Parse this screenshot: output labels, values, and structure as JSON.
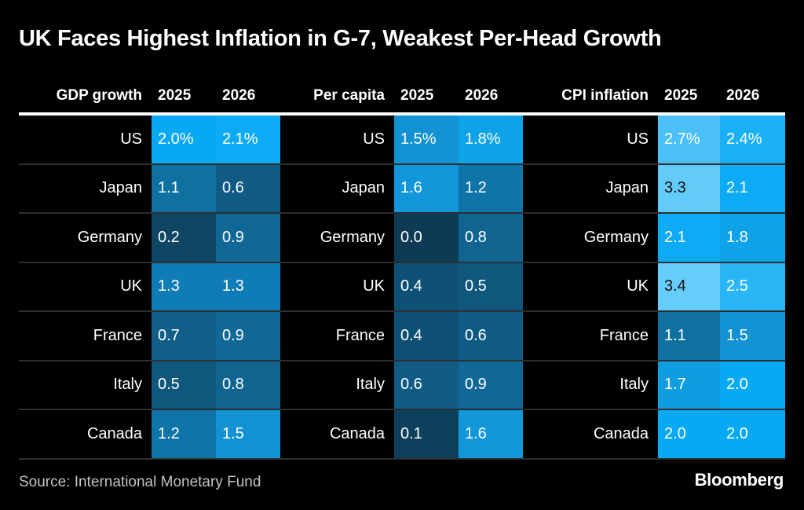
{
  "title": "UK Faces Highest Inflation in G-7, Weakest Per-Head Growth",
  "footer": {
    "source": "Source: International Monetary Fund",
    "brand": "Bloomberg"
  },
  "colors": {
    "background": "#000000",
    "title_text": "#FFFFFF",
    "header_text": "#FFFFFF",
    "label_text": "#FFFFFF",
    "value_text_light": "#FFFFFF",
    "value_text_dark": "#111111",
    "header_rule": "#FFFFFF",
    "row_divider": "#2E2E2E",
    "source_text": "#C4C4C4"
  },
  "heat_scale": {
    "dark_text_threshold": 3.0,
    "stops": [
      [
        0.0,
        "#0D3A54"
      ],
      [
        0.5,
        "#0F577D"
      ],
      [
        1.0,
        "#0F6C9C"
      ],
      [
        1.2,
        "#0F74A8"
      ],
      [
        1.3,
        "#107CB6"
      ],
      [
        1.5,
        "#1292D3"
      ],
      [
        1.8,
        "#0EA2E8"
      ],
      [
        2.0,
        "#08A9F4"
      ],
      [
        2.4,
        "#1AB0F6"
      ],
      [
        2.7,
        "#4AC0F7"
      ],
      [
        3.0,
        "#58C6F8"
      ],
      [
        3.4,
        "#66CCF9"
      ]
    ]
  },
  "chart_data": {
    "type": "heatmap",
    "title": "UK Faces Highest Inflation in G-7, Weakest Per-Head Growth",
    "unit": "%",
    "first_row_percent_suffix": true,
    "countries": [
      "US",
      "Japan",
      "Germany",
      "UK",
      "France",
      "Italy",
      "Canada"
    ],
    "groups": [
      {
        "key": "gdp_growth",
        "label": "GDP growth",
        "years": [
          "2025",
          "2026"
        ],
        "values": {
          "2025": [
            2.0,
            1.1,
            0.2,
            1.3,
            0.7,
            0.5,
            1.2
          ],
          "2026": [
            2.1,
            0.6,
            0.9,
            1.3,
            0.9,
            0.8,
            1.5
          ]
        }
      },
      {
        "key": "per_capita",
        "label": "Per capita",
        "years": [
          "2025",
          "2026"
        ],
        "values": {
          "2025": [
            1.5,
            1.6,
            0.0,
            0.4,
            0.4,
            0.6,
            0.1
          ],
          "2026": [
            1.8,
            1.2,
            0.8,
            0.5,
            0.6,
            0.9,
            1.6
          ]
        }
      },
      {
        "key": "cpi_inflation",
        "label": "CPI inflation",
        "years": [
          "2025",
          "2026"
        ],
        "values": {
          "2025": [
            2.7,
            3.3,
            2.1,
            3.4,
            1.1,
            1.7,
            2.0
          ],
          "2026": [
            2.4,
            2.1,
            1.8,
            2.5,
            1.5,
            2.0,
            2.0
          ]
        }
      }
    ]
  }
}
